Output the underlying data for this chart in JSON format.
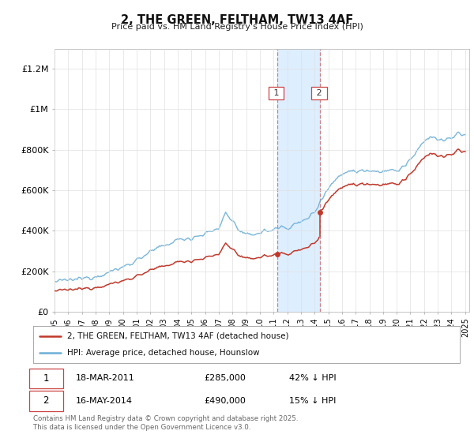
{
  "title": "2, THE GREEN, FELTHAM, TW13 4AF",
  "subtitle": "Price paid vs. HM Land Registry's House Price Index (HPI)",
  "ylim": [
    0,
    1300000
  ],
  "yticks": [
    0,
    200000,
    400000,
    600000,
    800000,
    1000000,
    1200000
  ],
  "ytick_labels": [
    "£0",
    "£200K",
    "£400K",
    "£600K",
    "£800K",
    "£1M",
    "£1.2M"
  ],
  "x_start_year": 1995,
  "x_end_year": 2025,
  "hpi_color": "#6baed6",
  "price_color": "#c0392b",
  "highlight_color": "#ddeeff",
  "sale1_year": 2011.25,
  "sale2_year": 2014.38,
  "sale1_price": 285000,
  "sale2_price": 490000,
  "legend_entry1": "2, THE GREEN, FELTHAM, TW13 4AF (detached house)",
  "legend_entry2": "HPI: Average price, detached house, Hounslow",
  "table_row1_num": "1",
  "table_row1_date": "18-MAR-2011",
  "table_row1_price": "£285,000",
  "table_row1_hpi": "42% ↓ HPI",
  "table_row2_num": "2",
  "table_row2_date": "16-MAY-2014",
  "table_row2_price": "£490,000",
  "table_row2_hpi": "15% ↓ HPI",
  "footer": "Contains HM Land Registry data © Crown copyright and database right 2025.\nThis data is licensed under the Open Government Licence v3.0.",
  "background_color": "#ffffff",
  "grid_color": "#e0e0e0"
}
